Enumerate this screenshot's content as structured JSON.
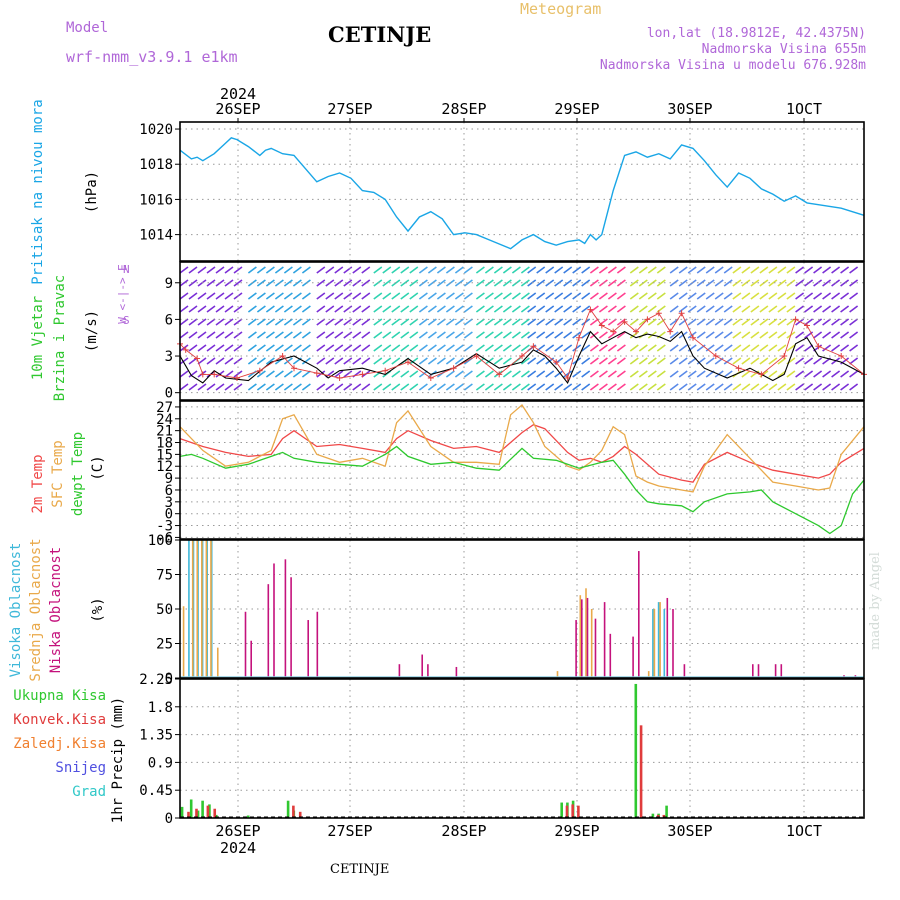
{
  "header": {
    "title": "CETINJE",
    "meteogram_label": "Meteogram",
    "model_label": "Model",
    "model_name": "wrf-nmm_v3.9.1 e1km",
    "info_lines": [
      "lon,lat (18.9812E, 42.4375N)",
      "Nadmorska Visina 655m",
      "Nadmorska Visina u modelu 676.928m"
    ]
  },
  "footer": {
    "place": "CETINJE"
  },
  "watermark": "made by Angel",
  "colors": {
    "pressure": "#1aa6e6",
    "temp2m": "#f04848",
    "sfc_temp": "#e9a94a",
    "dewpoint": "#2ec82e",
    "wind_ticks": "#e04040",
    "high_cloud": "#3fb8d9",
    "mid_cloud": "#e9a94a",
    "low_cloud": "#c4127c",
    "total_precip": "#30c830",
    "conv_precip": "#e03c3c",
    "frozen_precip": "#f08030",
    "snow": "#5050e0",
    "hail": "#30c8c8",
    "grid": "#9a9a9a"
  },
  "chart_data": [
    {
      "type": "line",
      "panel": "pressure",
      "ylabel": "Pritisak na nivou mora",
      "unit": "(hPa)",
      "ylim": [
        1012.5,
        1020.4
      ],
      "yticks": [
        1014,
        1016,
        1018,
        1020
      ],
      "x_days": [
        "26SEP",
        "27SEP",
        "28SEP",
        "29SEP",
        "30SEP",
        "1OCT"
      ],
      "year": "2024",
      "grid": true,
      "x": [
        0.0,
        0.1,
        0.15,
        0.2,
        0.3,
        0.4,
        0.45,
        0.5,
        0.6,
        0.7,
        0.75,
        0.8,
        0.9,
        1.0,
        1.2,
        1.3,
        1.4,
        1.5,
        1.6,
        1.7,
        1.8,
        1.9,
        2.0,
        2.1,
        2.2,
        2.3,
        2.4,
        2.5,
        2.6,
        2.75,
        2.9,
        3.0,
        3.1,
        3.2,
        3.3,
        3.4,
        3.5,
        3.55,
        3.6,
        3.65,
        3.7,
        3.8,
        3.9,
        4.0,
        4.1,
        4.2,
        4.3,
        4.4,
        4.5,
        4.6,
        4.7,
        4.8,
        4.9,
        5.0,
        5.1,
        5.2,
        5.3,
        5.4,
        5.5,
        5.6,
        5.8,
        6.0
      ],
      "y": [
        1018.8,
        1018.3,
        1018.4,
        1018.2,
        1018.6,
        1019.2,
        1019.5,
        1019.4,
        1019.0,
        1018.5,
        1018.8,
        1018.9,
        1018.6,
        1018.5,
        1017.0,
        1017.3,
        1017.5,
        1017.2,
        1016.5,
        1016.4,
        1016.0,
        1015.0,
        1014.2,
        1015.0,
        1015.3,
        1014.9,
        1014.0,
        1014.1,
        1014.0,
        1013.6,
        1013.2,
        1013.7,
        1014.0,
        1013.6,
        1013.4,
        1013.6,
        1013.7,
        1013.5,
        1014.0,
        1013.7,
        1014.0,
        1016.5,
        1018.5,
        1018.7,
        1018.4,
        1018.6,
        1018.3,
        1019.1,
        1018.9,
        1018.2,
        1017.4,
        1016.7,
        1017.5,
        1017.2,
        1016.6,
        1016.3,
        1015.9,
        1016.2,
        1015.8,
        1015.7,
        1015.5,
        1015.1
      ]
    },
    {
      "type": "line",
      "panel": "wind",
      "ylabel": "10m Vjetar Brzina i Pravac",
      "unit": "(m/s)",
      "compass": "W <-|-> E",
      "ylim": [
        -0.6,
        10.7
      ],
      "yticks": [
        0,
        3,
        6,
        9
      ],
      "grid": true,
      "series": [
        {
          "name": "speed",
          "x": [
            0.0,
            0.05,
            0.1,
            0.2,
            0.3,
            0.4,
            0.6,
            0.8,
            1.0,
            1.2,
            1.3,
            1.4,
            1.6,
            1.8,
            2.0,
            2.2,
            2.4,
            2.6,
            2.8,
            3.0,
            3.1,
            3.2,
            3.3,
            3.4,
            3.5,
            3.6,
            3.7,
            3.8,
            3.9,
            4.0,
            4.1,
            4.2,
            4.3,
            4.4,
            4.5,
            4.6,
            4.8,
            5.0,
            5.2,
            5.3,
            5.4,
            5.5,
            5.6,
            5.8,
            6.0
          ],
          "y": [
            3.0,
            2.2,
            1.4,
            0.8,
            1.8,
            1.2,
            1.0,
            2.5,
            3.0,
            2.0,
            1.2,
            1.8,
            2.0,
            1.5,
            2.8,
            1.5,
            2.0,
            3.2,
            2.0,
            2.5,
            3.5,
            3.0,
            2.0,
            0.8,
            3.0,
            5.0,
            4.0,
            4.5,
            5.0,
            4.5,
            4.8,
            4.6,
            4.2,
            5.0,
            3.0,
            2.0,
            1.2,
            2.0,
            1.0,
            1.5,
            4.0,
            4.5,
            3.0,
            2.5,
            1.5
          ]
        },
        {
          "name": "gusts",
          "x": [
            0.0,
            0.05,
            0.15,
            0.2,
            0.3,
            0.5,
            0.7,
            0.9,
            1.0,
            1.2,
            1.4,
            1.6,
            1.8,
            2.0,
            2.2,
            2.4,
            2.6,
            2.8,
            3.0,
            3.1,
            3.3,
            3.4,
            3.5,
            3.6,
            3.7,
            3.8,
            3.9,
            4.0,
            4.1,
            4.2,
            4.3,
            4.4,
            4.5,
            4.7,
            4.9,
            5.1,
            5.3,
            5.4,
            5.5,
            5.6,
            5.8,
            6.0
          ],
          "y": [
            4.0,
            3.5,
            2.8,
            1.5,
            1.5,
            1.2,
            1.8,
            3.0,
            2.0,
            1.6,
            1.2,
            1.5,
            1.8,
            2.5,
            1.2,
            2.0,
            3.0,
            1.5,
            3.0,
            3.8,
            2.5,
            1.2,
            4.5,
            6.8,
            5.5,
            5.0,
            5.8,
            5.0,
            6.0,
            6.5,
            5.0,
            6.5,
            4.5,
            3.0,
            2.0,
            1.5,
            3.0,
            6.0,
            5.5,
            3.8,
            3.0,
            1.5
          ]
        }
      ]
    },
    {
      "type": "line",
      "panel": "temperature",
      "ylabel": "2m Temp / SFC Temp / dewpt Temp",
      "unit": "(C)",
      "ylim": [
        -6.4,
        28.5
      ],
      "yticks": [
        -6,
        -3,
        0,
        3,
        6,
        9,
        12,
        15,
        18,
        21,
        24,
        27
      ],
      "grid": true,
      "series": [
        {
          "name": "2m Temp",
          "x": [
            0.0,
            0.2,
            0.4,
            0.6,
            0.8,
            0.9,
            1.0,
            1.1,
            1.2,
            1.4,
            1.6,
            1.8,
            1.9,
            2.0,
            2.2,
            2.4,
            2.6,
            2.8,
            3.0,
            3.1,
            3.2,
            3.4,
            3.5,
            3.6,
            3.7,
            3.8,
            3.9,
            4.0,
            4.2,
            4.4,
            4.5,
            4.6,
            4.8,
            5.0,
            5.2,
            5.4,
            5.6,
            5.7,
            5.8,
            6.0
          ],
          "y": [
            19.0,
            17.0,
            15.5,
            14.5,
            15.0,
            19.0,
            21.0,
            19.0,
            17.0,
            17.5,
            16.5,
            15.5,
            19.0,
            21.0,
            18.5,
            16.5,
            17.0,
            15.5,
            20.5,
            22.5,
            21.5,
            15.5,
            13.5,
            14.0,
            13.0,
            14.5,
            17.0,
            15.0,
            10.0,
            8.5,
            8.0,
            12.5,
            15.5,
            13.0,
            11.0,
            10.0,
            9.0,
            10.0,
            13.0,
            16.5
          ]
        },
        {
          "name": "SFC Temp",
          "x": [
            0.0,
            0.2,
            0.4,
            0.6,
            0.8,
            0.9,
            1.0,
            1.1,
            1.2,
            1.4,
            1.6,
            1.8,
            1.9,
            2.0,
            2.2,
            2.4,
            2.6,
            2.8,
            2.9,
            3.0,
            3.1,
            3.2,
            3.4,
            3.5,
            3.6,
            3.7,
            3.8,
            3.9,
            4.0,
            4.1,
            4.2,
            4.4,
            4.5,
            4.6,
            4.8,
            5.0,
            5.2,
            5.4,
            5.6,
            5.7,
            5.8,
            6.0
          ],
          "y": [
            22.0,
            16.0,
            12.0,
            13.0,
            16.0,
            24.0,
            25.0,
            20.0,
            15.0,
            13.0,
            14.0,
            12.0,
            23.0,
            26.0,
            17.0,
            13.0,
            13.0,
            12.5,
            25.0,
            27.5,
            23.0,
            17.0,
            12.0,
            11.0,
            13.0,
            16.0,
            22.0,
            20.0,
            9.5,
            8.0,
            7.0,
            6.0,
            5.5,
            12.0,
            20.0,
            14.0,
            8.0,
            7.0,
            6.0,
            6.5,
            15.0,
            22.0
          ]
        },
        {
          "name": "dewpt Temp",
          "x": [
            0.0,
            0.1,
            0.2,
            0.4,
            0.6,
            0.8,
            0.9,
            1.0,
            1.2,
            1.4,
            1.6,
            1.8,
            1.9,
            2.0,
            2.2,
            2.4,
            2.6,
            2.8,
            3.0,
            3.1,
            3.3,
            3.5,
            3.7,
            3.8,
            3.9,
            4.0,
            4.1,
            4.2,
            4.4,
            4.5,
            4.6,
            4.8,
            5.0,
            5.1,
            5.2,
            5.4,
            5.6,
            5.7,
            5.8,
            5.9,
            6.0
          ],
          "y": [
            14.5,
            15.0,
            14.0,
            11.5,
            12.5,
            14.5,
            15.5,
            14.0,
            13.0,
            12.5,
            12.0,
            15.0,
            17.0,
            14.5,
            12.5,
            13.0,
            11.5,
            11.0,
            16.5,
            14.0,
            13.5,
            11.5,
            13.0,
            13.5,
            10.0,
            6.0,
            3.0,
            2.5,
            2.0,
            0.5,
            3.0,
            5.0,
            5.5,
            6.0,
            3.0,
            0.0,
            -3.0,
            -5.0,
            -3.0,
            5.0,
            8.5
          ]
        }
      ]
    },
    {
      "type": "bar",
      "panel": "clouds",
      "ylabel": "Visoka Oblacnost / Srednja Oblacnost / Niska Oblacnost",
      "unit": "(%)",
      "ylim": [
        0,
        100
      ],
      "yticks": [
        0,
        25,
        50,
        75,
        100
      ],
      "grid": true,
      "series": [
        {
          "name": "Visoka Oblacnost",
          "x": [
            0.08,
            0.12,
            0.16,
            0.2,
            0.24,
            0.28,
            4.15,
            4.2,
            4.25
          ],
          "y": [
            100,
            100,
            100,
            100,
            100,
            100,
            50,
            55,
            50
          ]
        },
        {
          "name": "Srednja Oblacnost",
          "x": [
            0.02,
            0.1,
            0.14,
            0.18,
            0.22,
            0.26,
            0.32,
            3.3,
            3.5,
            3.55,
            3.6,
            4.1,
            4.15,
            4.2
          ],
          "y": [
            52,
            100,
            100,
            100,
            100,
            100,
            22,
            5,
            60,
            65,
            50,
            5,
            50,
            55
          ]
        },
        {
          "name": "Niska Oblacnost",
          "x": [
            0.55,
            0.6,
            0.75,
            0.8,
            0.9,
            0.95,
            1.1,
            1.18,
            1.9,
            2.1,
            2.15,
            2.4,
            3.45,
            3.5,
            3.55,
            3.62,
            3.7,
            3.75,
            3.95,
            4.0,
            4.25,
            4.3,
            4.4,
            5.0,
            5.05,
            5.2,
            5.25,
            5.8,
            5.9
          ],
          "y": [
            48,
            27,
            68,
            83,
            86,
            73,
            42,
            48,
            10,
            17,
            10,
            8,
            42,
            57,
            58,
            43,
            55,
            32,
            30,
            92,
            58,
            50,
            10,
            10,
            10,
            10,
            10,
            2,
            2
          ]
        }
      ]
    },
    {
      "type": "bar",
      "panel": "precipitation",
      "ylabel": "1hr Precip",
      "unit": "(mm)",
      "ylim": [
        0,
        2.25
      ],
      "yticks": [
        0,
        0.45,
        0.9,
        1.35,
        1.8,
        2.25
      ],
      "ytick_labels": [
        "0",
        "0.45",
        "0.9",
        "1.35",
        "1.8",
        "2.25"
      ],
      "grid": true,
      "legend": [
        "Ukupna Kisa",
        "Konvek.Kisa",
        "Zaledj.Kisa",
        "Snijeg",
        "Grad"
      ],
      "series": [
        {
          "name": "Ukupna Kisa",
          "x": [
            0.02,
            0.1,
            0.16,
            0.2,
            0.26,
            0.32,
            0.6,
            0.95,
            1.0,
            3.35,
            3.4,
            3.45,
            4.0,
            4.15,
            4.2,
            4.27
          ],
          "y": [
            0.18,
            0.3,
            0.12,
            0.28,
            0.22,
            0.05,
            0.04,
            0.28,
            0.12,
            0.25,
            0.25,
            0.28,
            2.17,
            0.07,
            0.07,
            0.2
          ]
        },
        {
          "name": "Konvek.Kisa",
          "x": [
            0.05,
            0.12,
            0.22,
            0.28,
            0.97,
            1.03,
            3.37,
            3.42,
            3.47,
            4.02,
            4.17,
            4.22
          ],
          "y": [
            0.1,
            0.15,
            0.2,
            0.15,
            0.2,
            0.1,
            0.2,
            0.22,
            0.2,
            1.5,
            0.05,
            0.05
          ]
        }
      ]
    }
  ],
  "labels": {
    "pressure": [
      "Pritisak na nivou mora",
      "(hPa)"
    ],
    "wind": [
      "10m Vjetar",
      "Brzina i Pravac",
      "(m/s)"
    ],
    "wind_compass": [
      "W",
      "<-|->",
      "E",
      "N",
      "S"
    ],
    "temperature": [
      "2m Temp",
      "SFC Temp",
      "dewpt Temp",
      "(C)"
    ],
    "clouds": [
      "Visoka Oblacnost",
      "Srednja Oblacnost",
      "Niska Oblacnost",
      "(%)"
    ],
    "precip_unit": "1hr Precip (mm)"
  }
}
